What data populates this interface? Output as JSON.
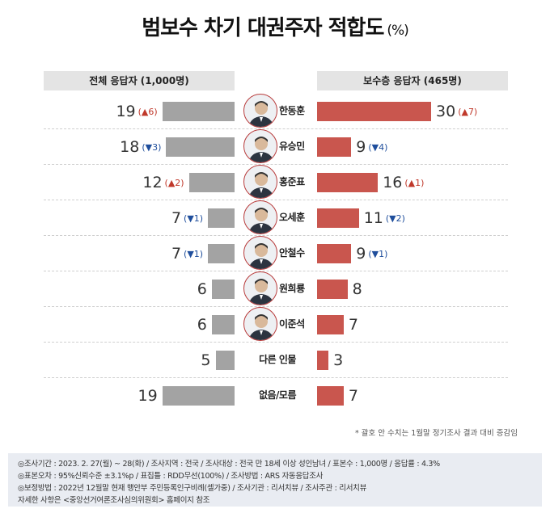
{
  "title": "범보수 차기 대권주자 적합도",
  "title_unit": "(%)",
  "headers": {
    "left": "전체 응답자 (1,000명)",
    "right": "보수층 응답자 (465명)"
  },
  "colors": {
    "left_bar": "#a3a3a3",
    "right_bar": "#c9564e",
    "up": "#c0392b",
    "down": "#1f4e9c"
  },
  "chart_data": {
    "type": "bar",
    "orientation": "horizontal-butterfly",
    "categories": [
      "한동훈",
      "유승민",
      "홍준표",
      "오세훈",
      "안철수",
      "원희룡",
      "이준석",
      "다른 인물",
      "없음/모름"
    ],
    "series": [
      {
        "name": "전체 응답자 (1,000명)",
        "values": [
          19,
          18,
          12,
          7,
          7,
          6,
          6,
          5,
          19
        ],
        "changes": [
          "▲6",
          "▼3",
          "▲2",
          "▼1",
          "▼1",
          "",
          "",
          "",
          ""
        ]
      },
      {
        "name": "보수층 응답자 (465명)",
        "values": [
          30,
          9,
          16,
          11,
          9,
          8,
          7,
          3,
          7
        ],
        "changes": [
          "▲7",
          "▼4",
          "▲1",
          "▼2",
          "▼1",
          "",
          "",
          "",
          ""
        ]
      }
    ],
    "photo": [
      true,
      true,
      true,
      true,
      true,
      true,
      true,
      false,
      false
    ]
  },
  "footnote": "* 괄호 안 수치는 1월말 정기조사 결과 대비 증감임",
  "info_lines": [
    "◎조사기간 : 2023. 2. 27(월) ~ 28(화) / 조사지역 : 전국 / 조사대상 : 전국 만 18세 이상 성인남녀 / 표본수 : 1,000명 / 응답률 : 4.3%",
    "◎표본오차 : 95%신뢰수준 ±3.1%p / 표집틀 : RDD무선(100%) / 조사방법 : ARS 자동응답조사",
    "◎보정방법 : 2022년 12월말 현재 행안부 주민등록인구비례(셀가중) / 조사기관 : 리서치뷰 / 조사주관 : 리서치뷰",
    "자세한 사항은 <중앙선거여론조사심의위원회> 홈페이지 참조"
  ]
}
